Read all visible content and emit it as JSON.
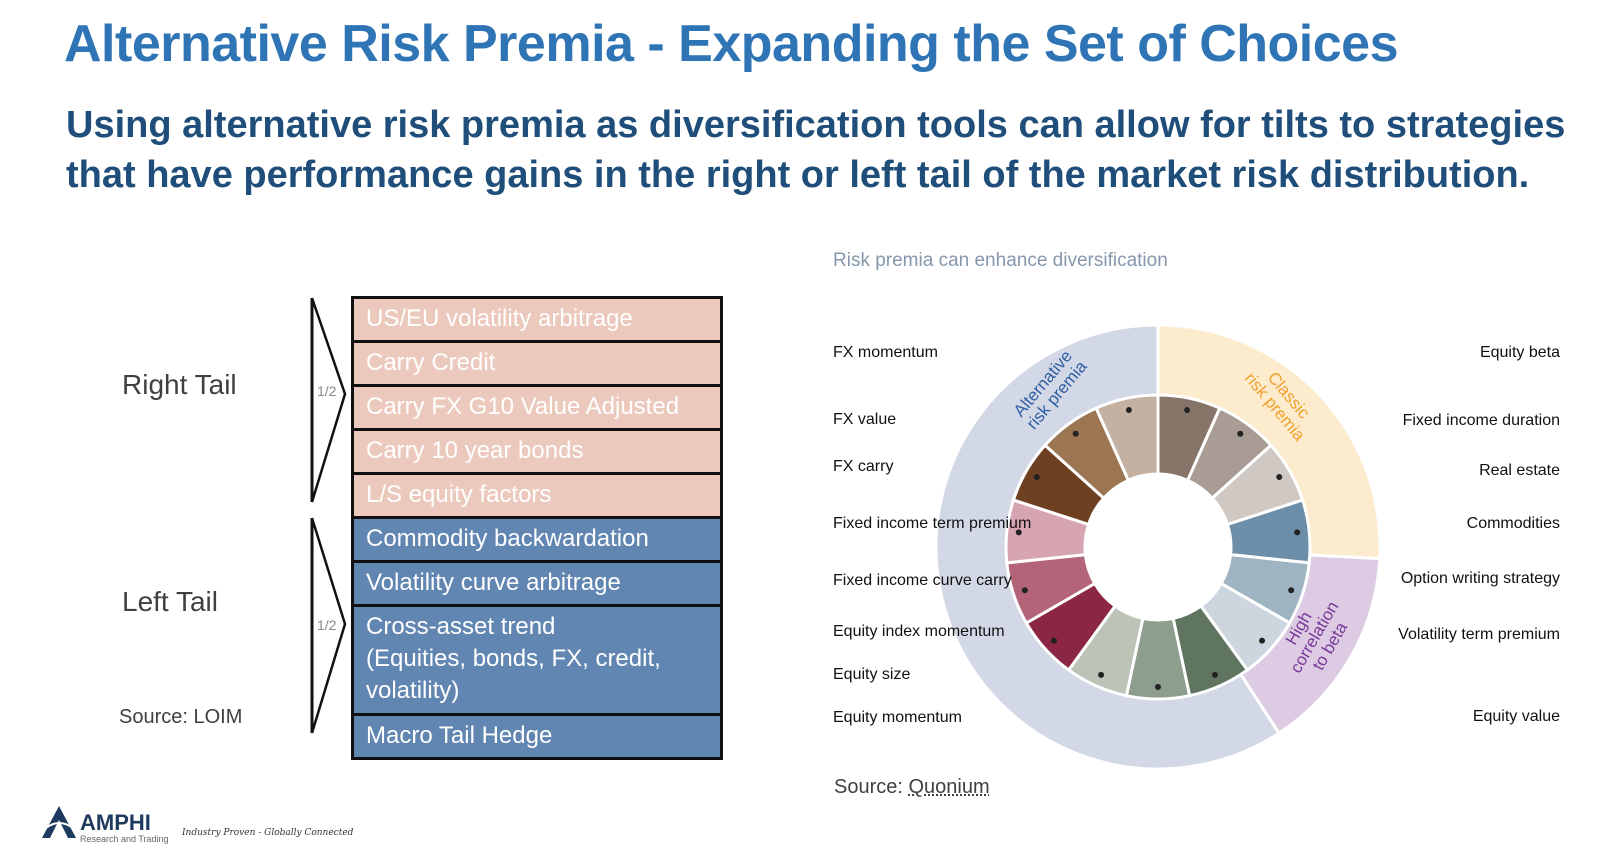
{
  "title": "Alternative Risk Premia - Expanding the Set of Choices",
  "subtitle": "Using alternative risk premia as diversification tools can allow for tilts to strategies that have performance gains in the right or left tail of the market risk distribution.",
  "left": {
    "right_tail_label": "Right Tail",
    "left_tail_label": "Left Tail",
    "half_label": "1/2",
    "source": "Source: LOIM",
    "right_tail_items": [
      "US/EU volatility arbitrage",
      "Carry Credit",
      "Carry FX G10 Value Adjusted",
      "Carry 10 year bonds",
      "L/S equity factors"
    ],
    "left_tail_items": [
      "Commodity backwardation",
      "Volatility curve arbitrage",
      "Cross-asset trend",
      "(Equities, bonds, FX, credit,",
      "volatility)",
      "Macro Tail Hedge"
    ]
  },
  "chart": {
    "title": "Risk premia can enhance diversification",
    "source_prefix": "Source: ",
    "source_name": "Quonium",
    "ring_labels": {
      "alternative": [
        "Alternative",
        "risk premia"
      ],
      "classic": [
        "Classic",
        "risk premia"
      ],
      "high": [
        "High",
        "correlation",
        "to beta"
      ]
    },
    "left_labels": [
      "FX momentum",
      "FX value",
      "FX carry",
      "Fixed income term premium",
      "Fixed income curve carry",
      "Equity index momentum",
      "Equity size",
      "Equity momentum"
    ],
    "right_labels": [
      "Equity beta",
      "Fixed income duration",
      "Real estate",
      "Commodities",
      "Option writing strategy",
      "Volatility term premium",
      "Equity value"
    ],
    "colors": {
      "outer_alt": "#d3d8e6",
      "outer_classic": "#fcebcd",
      "outer_high": "#dccbe2",
      "text_alt": "#2e5fa3",
      "text_classic": "#f0a12e",
      "text_high": "#7a3a9a"
    }
  },
  "logo": {
    "name": "AMPHI",
    "sub": "Research and Trading",
    "tagline": "Industry Proven - Globally Connected"
  }
}
